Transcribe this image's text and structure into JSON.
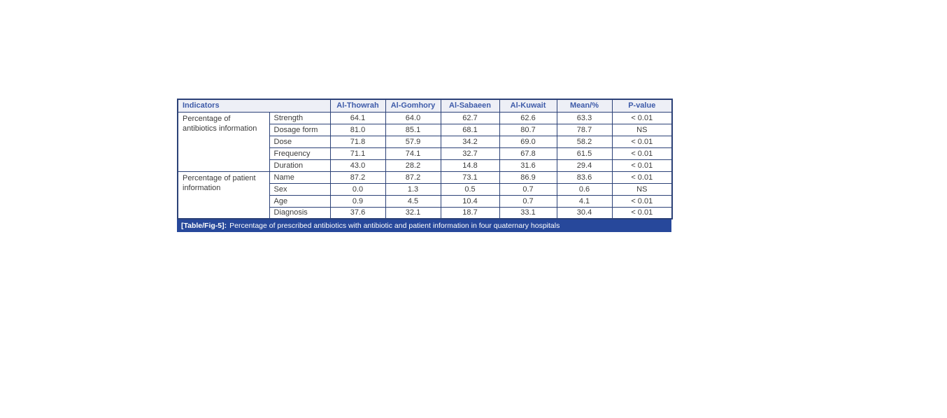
{
  "table": {
    "header": {
      "indicators_label": "Indicators",
      "columns": [
        "Al-Thowrah",
        "Al-Gomhory",
        "Al-Sabaeen",
        "Al-Kuwait",
        "Mean/%",
        "P-value"
      ]
    },
    "groups": [
      {
        "label": "Percentage of antibiotics information",
        "rows": [
          {
            "indicator": "Strength",
            "values": [
              "64.1",
              "64.0",
              "62.7",
              "62.6",
              "63.3",
              "< 0.01"
            ]
          },
          {
            "indicator": "Dosage form",
            "values": [
              "81.0",
              "85.1",
              "68.1",
              "80.7",
              "78.7",
              "NS"
            ]
          },
          {
            "indicator": "Dose",
            "values": [
              "71.8",
              "57.9",
              "34.2",
              "69.0",
              "58.2",
              "< 0.01"
            ]
          },
          {
            "indicator": "Frequency",
            "values": [
              "71.1",
              "74.1",
              "32.7",
              "67.8",
              "61.5",
              "< 0.01"
            ]
          },
          {
            "indicator": "Duration",
            "values": [
              "43.0",
              "28.2",
              "14.8",
              "31.6",
              "29.4",
              "< 0.01"
            ]
          }
        ]
      },
      {
        "label": "Percentage of patient information",
        "rows": [
          {
            "indicator": "Name",
            "values": [
              "87.2",
              "87.2",
              "73.1",
              "86.9",
              "83.6",
              "< 0.01"
            ]
          },
          {
            "indicator": "Sex",
            "values": [
              "0.0",
              "1.3",
              "0.5",
              "0.7",
              "0.6",
              "NS"
            ]
          },
          {
            "indicator": "Age",
            "values": [
              "0.9",
              "4.5",
              "10.4",
              "0.7",
              "4.1",
              "< 0.01"
            ]
          },
          {
            "indicator": "Diagnosis",
            "values": [
              "37.6",
              "32.1",
              "18.7",
              "33.1",
              "30.4",
              "< 0.01"
            ]
          }
        ]
      }
    ],
    "caption": {
      "tag": "[Table/Fig-5]:",
      "text": "Percentage of prescribed antibiotics with antibiotic and patient information in four quaternary hospitals"
    }
  },
  "colors": {
    "border": "#2b4177",
    "header_bg": "#edeff6",
    "header_text": "#3e5ba9",
    "caption_bg": "#27489b",
    "caption_text": "#ffffff",
    "body_text": "#3b3b3b"
  }
}
